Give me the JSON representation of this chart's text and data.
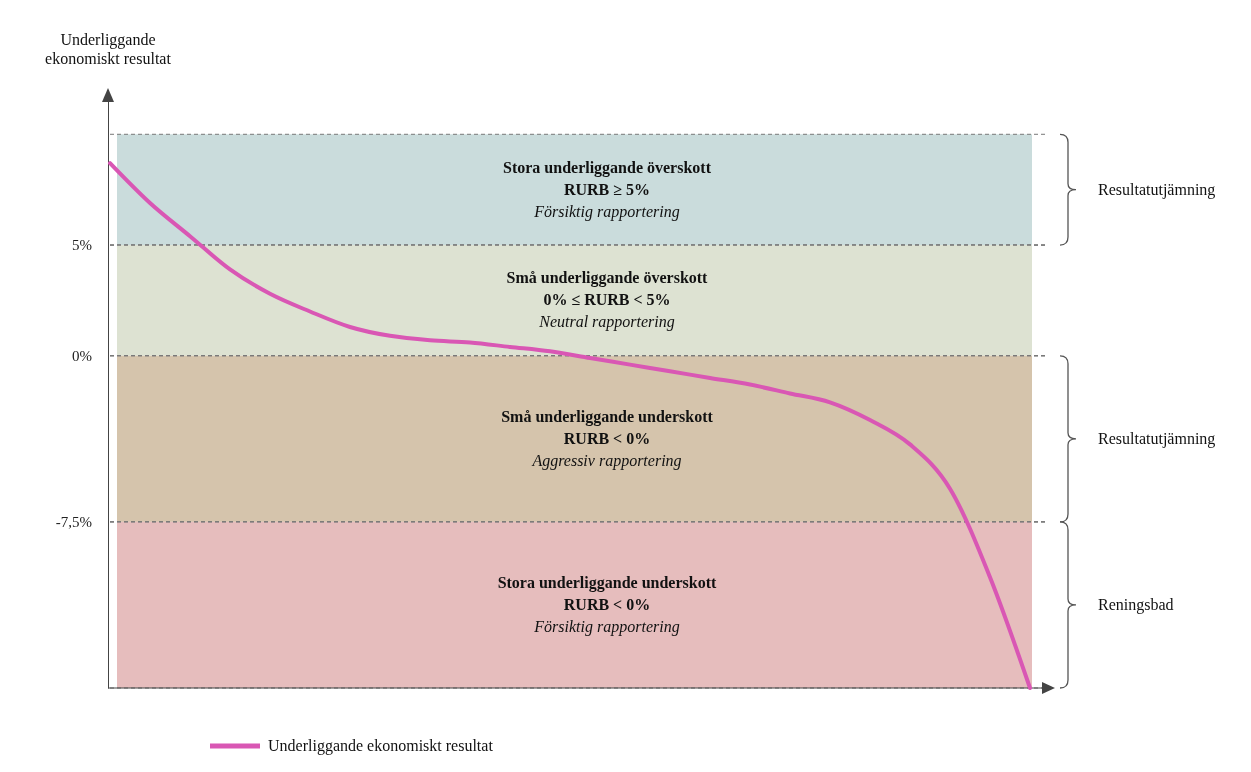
{
  "chart_data": {
    "type": "line",
    "ylabel": "Underliggande ekonomiskt resultat",
    "categories": [
      null,
      null,
      null,
      null,
      null,
      null,
      null,
      null,
      null,
      null,
      null,
      null,
      null,
      null,
      null,
      null,
      null,
      null,
      null,
      null,
      null,
      null,
      null,
      null
    ],
    "series": [
      {
        "name": "Underliggande ekonomiskt resultat",
        "color": "#d957b4",
        "values": [
          8.7,
          6.9,
          5.4,
          3.9,
          2.8,
          2,
          1.3,
          0.9,
          0.7,
          0.6,
          0.4,
          0.2,
          -0.1,
          -0.4,
          -0.7,
          -1,
          -1.3,
          -1.7,
          -2.1,
          -2.9,
          -4,
          -6,
          -10,
          -15
        ]
      }
    ],
    "ylim": [
      -15,
      12
    ],
    "yticks": [
      {
        "value": 5,
        "label": "5%"
      },
      {
        "value": 0,
        "label": "0%"
      },
      {
        "value": -7.5,
        "label": "-7,5%"
      }
    ],
    "bands": [
      {
        "axis": "y",
        "from": 5,
        "to": 10,
        "color": "#cadcdc",
        "label": "Stora underliggande överskott\nRURB ≥ 5%\nFörsiktig rapportering"
      },
      {
        "axis": "y",
        "from": 0,
        "to": 5,
        "color": "#dde2d2",
        "label": "Små underliggande överskott\n0% ≤ RURB < 5%\nNeutral rapportering"
      },
      {
        "axis": "y",
        "from": -7.5,
        "to": 0,
        "color": "#d5c4ac",
        "label": "Små underliggande underskott\nRURB < 0%\nAggressiv rapportering"
      },
      {
        "axis": "y",
        "from": -15,
        "to": -7.5,
        "color": "#e6bdbd",
        "label": "Stora underliggande underskott\nRURB < 0%\nFörsiktig rapportering"
      }
    ],
    "annotations": [
      "Resultatutjämning",
      "Resultatutjämning",
      "Reningsbad"
    ],
    "grid": "y",
    "legend": "bottom left",
    "line_style": "solid",
    "marker": "none"
  }
}
